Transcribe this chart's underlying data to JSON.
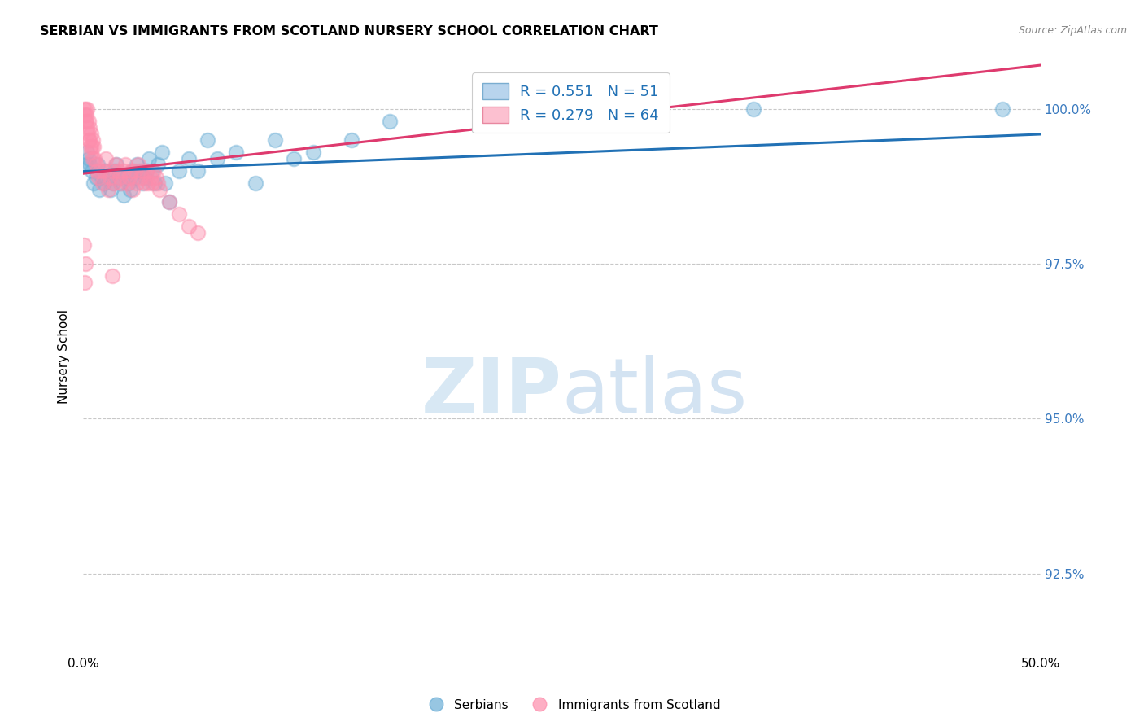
{
  "title": "SERBIAN VS IMMIGRANTS FROM SCOTLAND NURSERY SCHOOL CORRELATION CHART",
  "source": "Source: ZipAtlas.com",
  "ylabel": "Nursery School",
  "ytick_labels": [
    "92.5%",
    "95.0%",
    "97.5%",
    "100.0%"
  ],
  "ytick_values": [
    92.5,
    95.0,
    97.5,
    100.0
  ],
  "xmin": 0.0,
  "xmax": 50.0,
  "ymin": 91.2,
  "ymax": 100.8,
  "legend_entry1": "R = 0.551   N = 51",
  "legend_entry2": "R = 0.279   N = 64",
  "color_blue": "#6baed6",
  "color_pink": "#fd8dac",
  "color_line_blue": "#2171b5",
  "color_line_pink": "#de3a6e",
  "watermark_zip": "ZIP",
  "watermark_atlas": "atlas",
  "blue_x": [
    0.18,
    0.22,
    0.28,
    0.35,
    0.45,
    0.55,
    0.65,
    0.75,
    0.85,
    0.95,
    1.1,
    1.2,
    1.35,
    1.45,
    1.55,
    1.65,
    1.75,
    1.85,
    1.95,
    2.1,
    2.25,
    2.35,
    2.45,
    2.6,
    2.7,
    2.8,
    2.95,
    3.1,
    3.2,
    3.3,
    3.45,
    3.6,
    3.75,
    3.9,
    4.1,
    4.3,
    4.5,
    5.0,
    5.5,
    6.0,
    6.5,
    7.0,
    8.0,
    9.0,
    10.0,
    11.0,
    12.0,
    14.0,
    16.0,
    35.0,
    48.0
  ],
  "blue_y": [
    99.1,
    99.3,
    99.2,
    99.1,
    99.0,
    98.8,
    98.9,
    99.1,
    98.7,
    98.9,
    98.8,
    99.0,
    98.9,
    98.7,
    98.8,
    99.0,
    99.1,
    98.9,
    98.8,
    98.6,
    98.9,
    98.8,
    98.7,
    99.0,
    98.9,
    99.1,
    99.0,
    98.8,
    98.9,
    99.0,
    99.2,
    99.0,
    98.8,
    99.1,
    99.3,
    98.8,
    98.5,
    99.0,
    99.2,
    99.0,
    99.5,
    99.2,
    99.3,
    98.8,
    99.5,
    99.2,
    99.3,
    99.5,
    99.8,
    100.0,
    100.0
  ],
  "pink_x": [
    0.05,
    0.08,
    0.1,
    0.12,
    0.15,
    0.18,
    0.2,
    0.22,
    0.25,
    0.28,
    0.3,
    0.32,
    0.35,
    0.38,
    0.4,
    0.42,
    0.45,
    0.48,
    0.5,
    0.55,
    0.6,
    0.65,
    0.7,
    0.8,
    0.9,
    1.0,
    1.1,
    1.2,
    1.3,
    1.4,
    1.5,
    1.6,
    1.7,
    1.8,
    1.9,
    2.0,
    2.1,
    2.2,
    2.3,
    2.4,
    2.5,
    2.6,
    2.7,
    2.8,
    2.9,
    3.0,
    3.1,
    3.2,
    3.3,
    3.4,
    3.5,
    3.6,
    3.7,
    3.8,
    3.9,
    4.0,
    4.5,
    5.0,
    5.5,
    6.0,
    0.05,
    0.08,
    0.1,
    1.5
  ],
  "pink_y": [
    100.0,
    99.9,
    99.8,
    100.0,
    99.9,
    99.8,
    100.0,
    99.7,
    99.6,
    99.8,
    99.5,
    99.7,
    99.5,
    99.4,
    99.3,
    99.6,
    99.4,
    99.2,
    99.5,
    99.4,
    99.2,
    99.1,
    99.0,
    98.9,
    99.0,
    98.8,
    99.0,
    99.2,
    98.7,
    98.9,
    99.0,
    98.8,
    99.1,
    99.0,
    98.9,
    98.8,
    99.0,
    99.1,
    98.8,
    98.9,
    99.0,
    98.7,
    99.0,
    98.8,
    99.1,
    98.9,
    99.0,
    98.8,
    99.0,
    98.8,
    98.9,
    98.8,
    99.0,
    98.9,
    98.8,
    98.7,
    98.5,
    98.3,
    98.1,
    98.0,
    97.8,
    97.2,
    97.5,
    97.3
  ]
}
